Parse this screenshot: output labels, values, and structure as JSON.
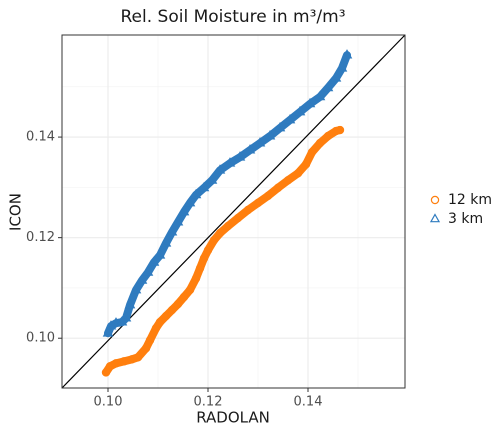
{
  "chart_data": {
    "type": "scatter",
    "title": "Rel. Soil Moisture in m³/m³",
    "xlabel": "RADOLAN",
    "ylabel": "ICON",
    "xlim": [
      0.0908,
      0.1594
    ],
    "ylim": [
      0.0901,
      0.1603
    ],
    "xticks": [
      {
        "value": 0.1,
        "label": "0.10"
      },
      0.12,
      0.14
    ],
    "yticks": [
      {
        "value": 0.1,
        "label": "0.10"
      },
      0.12,
      0.14
    ],
    "grid": true,
    "legend": "right",
    "series": [
      {
        "name": "12 km",
        "color": "#ff7f0e",
        "marker": "circle",
        "x": [
          0.0996,
          0.1004,
          0.1016,
          0.1032,
          0.1048,
          0.106,
          0.1076,
          0.1084,
          0.1096,
          0.1104,
          0.1116,
          0.1128,
          0.114,
          0.1152,
          0.1164,
          0.1176,
          0.1184,
          0.1192,
          0.12,
          0.1212,
          0.1224,
          0.124,
          0.126,
          0.128,
          0.13,
          0.132,
          0.134,
          0.136,
          0.138,
          0.1396,
          0.1408,
          0.1424,
          0.144,
          0.1456,
          0.1464
        ],
        "values": [
          0.0932,
          0.0944,
          0.095,
          0.0954,
          0.0958,
          0.0962,
          0.098,
          0.0996,
          0.102,
          0.1032,
          0.1044,
          0.1056,
          0.1068,
          0.1082,
          0.1096,
          0.1119,
          0.1139,
          0.1159,
          0.1175,
          0.1195,
          0.1209,
          0.1223,
          0.1239,
          0.1255,
          0.1269,
          0.1283,
          0.1299,
          0.1314,
          0.1328,
          0.1346,
          0.137,
          0.1388,
          0.1402,
          0.1412,
          0.1414
        ]
      },
      {
        "name": "3 km",
        "color": "#2f7bbf",
        "marker": "triangle",
        "x": [
          0.1,
          0.1006,
          0.1016,
          0.1028,
          0.1036,
          0.1044,
          0.1056,
          0.1068,
          0.108,
          0.1092,
          0.1104,
          0.1116,
          0.1128,
          0.114,
          0.1152,
          0.1164,
          0.1176,
          0.1192,
          0.1208,
          0.1224,
          0.1244,
          0.1264,
          0.1284,
          0.1304,
          0.1324,
          0.1344,
          0.1364,
          0.1384,
          0.1404,
          0.1424,
          0.144,
          0.1456,
          0.1468,
          0.1478
        ],
        "values": [
          0.101,
          0.1024,
          0.103,
          0.1032,
          0.104,
          0.1066,
          0.1096,
          0.1115,
          0.1131,
          0.1151,
          0.1165,
          0.1189,
          0.1211,
          0.1231,
          0.1251,
          0.1269,
          0.1285,
          0.1299,
          0.1314,
          0.1334,
          0.1348,
          0.136,
          0.1374,
          0.1388,
          0.1402,
          0.1418,
          0.1434,
          0.145,
          0.1466,
          0.148,
          0.1498,
          0.1517,
          0.1537,
          0.1563
        ]
      }
    ]
  }
}
